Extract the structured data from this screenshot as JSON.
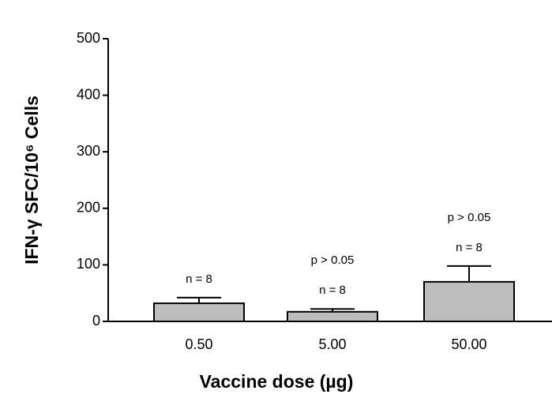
{
  "chart_data": {
    "type": "bar",
    "xlabel": "Vaccine dose (µg)",
    "ylabel": "IFN-γ SFC/10⁶ Cells",
    "categories": [
      "0.50",
      "5.00",
      "50.00"
    ],
    "values": [
      32,
      17,
      70
    ],
    "errors": [
      10,
      5,
      28
    ],
    "n_labels": [
      "n = 8",
      "n = 8",
      "n = 8"
    ],
    "p_labels": [
      null,
      "p > 0.05",
      "p > 0.05"
    ],
    "color": "#bdbdbd",
    "ylim": [
      0,
      500
    ],
    "yticks": [
      0,
      100,
      200,
      300,
      400,
      500
    ],
    "grid": false
  }
}
